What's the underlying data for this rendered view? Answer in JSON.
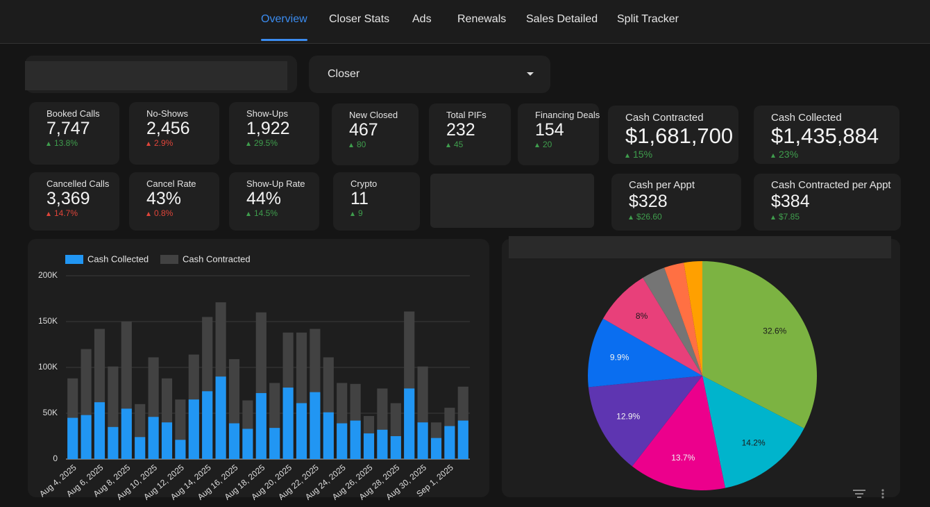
{
  "nav": {
    "tabs": [
      "Overview",
      "Closer Stats",
      "Ads",
      "Renewals",
      "Sales Detailed",
      "Split Tracker"
    ],
    "active": 0
  },
  "filter": {
    "label": "Closer"
  },
  "cards": [
    {
      "label": "Booked Calls",
      "value": "7,747",
      "delta": "13.8%",
      "color": "#3f9e4d"
    },
    {
      "label": "No-Shows",
      "value": "2,456",
      "delta": "2.9%",
      "color": "#e0453a"
    },
    {
      "label": "Show-Ups",
      "value": "1,922",
      "delta": "29.5%",
      "color": "#3f9e4d"
    },
    {
      "label": "New Closed",
      "value": "467",
      "delta": "80",
      "color": "#3f9e4d"
    },
    {
      "label": "Total PIFs",
      "value": "232",
      "delta": "45",
      "color": "#3f9e4d"
    },
    {
      "label": "Financing Deals",
      "value": "154",
      "delta": "20",
      "color": "#3f9e4d"
    },
    {
      "label": "Cash Contracted",
      "value": "$1,681,700",
      "delta": "15%",
      "color": "#3f9e4d"
    },
    {
      "label": "Cash Collected",
      "value": "$1,435,884",
      "delta": "23%",
      "color": "#3f9e4d"
    },
    {
      "label": "Cancelled Calls",
      "value": "3,369",
      "delta": "14.7%",
      "color": "#e0453a"
    },
    {
      "label": "Cancel Rate",
      "value": "43%",
      "delta": "0.8%",
      "color": "#e0453a"
    },
    {
      "label": "Show-Up Rate",
      "value": "44%",
      "delta": "14.5%",
      "color": "#3f9e4d"
    },
    {
      "label": "Crypto",
      "value": "11",
      "delta": "9",
      "color": "#3f9e4d"
    },
    {
      "label": "Cash per Appt",
      "value": "$328",
      "delta": "$26.60",
      "color": "#3f9e4d"
    },
    {
      "label": "Cash Contracted per Appt",
      "value": "$384",
      "delta": "$7.85",
      "color": "#3f9e4d"
    }
  ],
  "chart_data": [
    {
      "type": "bar",
      "categories": [
        "Aug 4, 2025",
        null,
        "Aug 6, 2025",
        null,
        "Aug 8, 2025",
        null,
        "Aug 10, 2025",
        null,
        "Aug 12, 2025",
        null,
        "Aug 14, 2025",
        null,
        "Aug 16, 2025",
        null,
        "Aug 18, 2025",
        null,
        "Aug 20, 2025",
        null,
        "Aug 22, 2025",
        null,
        "Aug 24, 2025",
        null,
        "Aug 26, 2025",
        null,
        "Aug 28, 2025",
        null,
        "Aug 30, 2025",
        null,
        "Sep 1, 2025",
        null
      ],
      "series": [
        {
          "name": "Cash Collected",
          "color": "#2196f3",
          "values": [
            45000,
            48000,
            62000,
            35000,
            55000,
            24000,
            46000,
            40000,
            21000,
            65000,
            74000,
            90000,
            39000,
            33000,
            72000,
            34000,
            78000,
            61000,
            73000,
            51000,
            39000,
            42000,
            28000,
            32000,
            25000,
            77000,
            40000,
            23000,
            36000,
            42000
          ]
        },
        {
          "name": "Cash Contracted",
          "color": "#424242",
          "values": [
            88000,
            120000,
            142000,
            101000,
            150000,
            60000,
            111000,
            88000,
            65000,
            114000,
            155000,
            171000,
            109000,
            64000,
            160000,
            83000,
            138000,
            138000,
            142000,
            111000,
            83000,
            82000,
            47000,
            77000,
            61000,
            161000,
            101000,
            40000,
            56000,
            79000
          ]
        }
      ],
      "ylim": [
        0,
        200000
      ],
      "yticks": [
        0,
        {
          "value": 50000,
          "label": "50K"
        },
        {
          "value": 100000,
          "label": "100K"
        },
        {
          "value": 150000,
          "label": "150K"
        },
        {
          "value": 200000,
          "label": "200K"
        }
      ],
      "grid": true
    },
    {
      "type": "pie",
      "values": [
        32.6,
        14.2,
        13.7,
        12.9,
        9.9,
        8,
        3.3,
        2.8,
        2.6
      ],
      "value_labels": [
        "32.6%",
        "14.2%",
        "13.7%",
        "12.9%",
        "9.9%",
        "8%",
        null,
        null,
        null
      ],
      "colors": [
        "#7cb342",
        "#00b4cc",
        "#ec008c",
        "#5e35b1",
        "#0a6ef0",
        "#e8407a",
        "#757575",
        "#ff7043",
        "#ffa000"
      ]
    }
  ]
}
